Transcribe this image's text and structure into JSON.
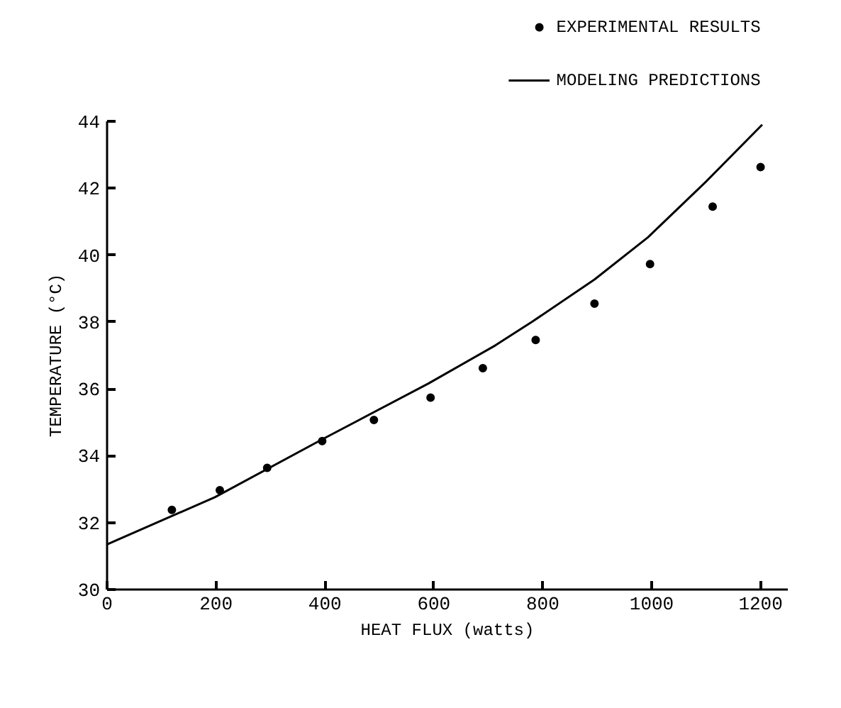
{
  "chart_data": {
    "type": "scatter",
    "xlabel": "HEAT FLUX (watts)",
    "ylabel": "TEMPERATURE (°C)",
    "xlim": [
      0,
      1250
    ],
    "ylim": [
      30,
      44
    ],
    "xticks": [
      0,
      200,
      400,
      600,
      800,
      1000,
      1200
    ],
    "yticks": [
      30,
      32,
      34,
      36,
      38,
      40,
      42,
      44
    ],
    "grid": false,
    "legend": "top right",
    "series": [
      {
        "name": "EXPERIMENTAL RESULTS",
        "marker": "circle",
        "color": "#000000",
        "x": [
          119,
          207,
          294,
          395,
          490,
          594,
          690,
          787,
          895,
          997,
          1112,
          1200
        ],
        "values": [
          32.38,
          32.97,
          33.64,
          34.44,
          35.07,
          35.74,
          36.62,
          37.46,
          38.55,
          39.73,
          41.45,
          42.63
        ]
      },
      {
        "name": "MODELING PREDICTIONS",
        "type": "line",
        "marker": "none",
        "line_style": "solid",
        "color": "#000000",
        "x": [
          0,
          198,
          394,
          590,
          713,
          780,
          895,
          993,
          1100,
          1203
        ],
        "values": [
          31.35,
          32.76,
          34.48,
          36.16,
          37.3,
          38.0,
          39.27,
          40.53,
          42.2,
          43.9
        ]
      }
    ]
  }
}
